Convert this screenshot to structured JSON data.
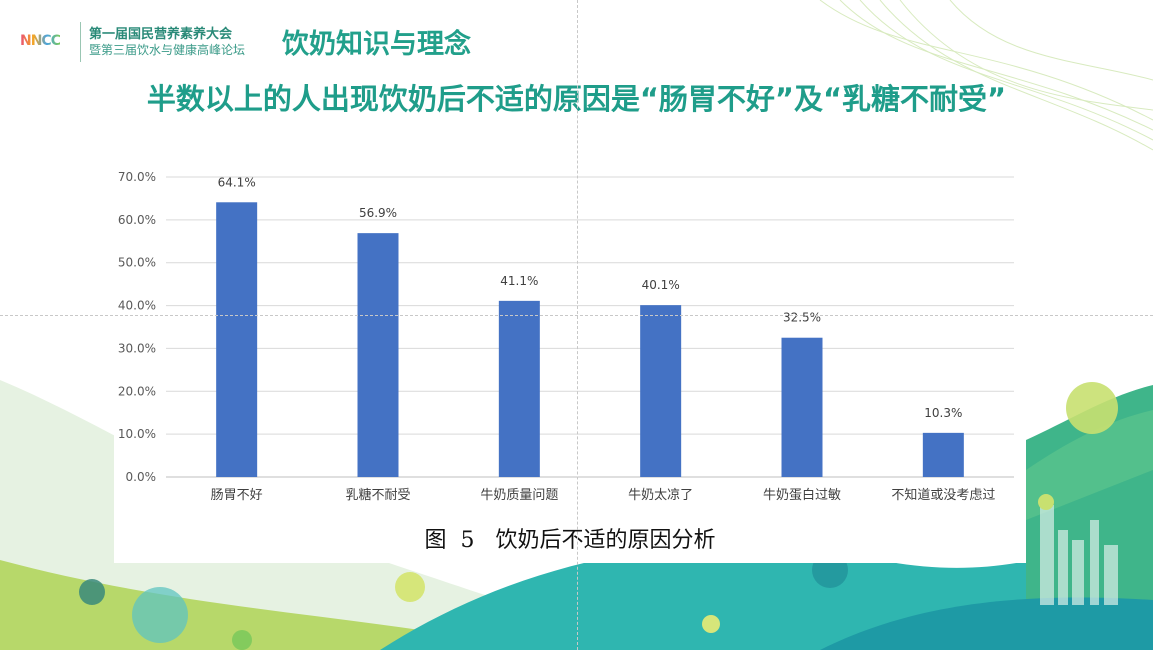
{
  "header": {
    "logo_text": "NNCC",
    "conference_line1": "第一届国民营养素养大会",
    "conference_line2": "暨第三届饮水与健康高峰论坛",
    "section_title": "饮奶知识与理念"
  },
  "headline": "半数以上的人出现饮奶后不适的原因是“肠胃不好”及“乳糖不耐受”",
  "caption": "图  5   饮奶后不适的原因分析",
  "colors": {
    "bar": "#4472c4",
    "title_teal": "#1f9d8a",
    "grid": "#d9d9d9"
  },
  "chart_data": {
    "type": "bar",
    "categories": [
      "肠胃不好",
      "乳糖不耐受",
      "牛奶质量问题",
      "牛奶太凉了",
      "牛奶蛋白过敏",
      "不知道或没考虑过"
    ],
    "values": [
      64.1,
      56.9,
      41.1,
      40.1,
      32.5,
      10.3
    ],
    "data_labels": [
      "64.1%",
      "56.9%",
      "41.1%",
      "40.1%",
      "32.5%",
      "10.3%"
    ],
    "ylim": [
      0,
      70
    ],
    "yticks": [
      0,
      10,
      20,
      30,
      40,
      50,
      60,
      70
    ],
    "ytick_labels": [
      "0.0%",
      "10.0%",
      "20.0%",
      "30.0%",
      "40.0%",
      "50.0%",
      "60.0%",
      "70.0%"
    ],
    "grid": true,
    "legend": "none",
    "title": "",
    "xlabel": "",
    "ylabel": ""
  }
}
